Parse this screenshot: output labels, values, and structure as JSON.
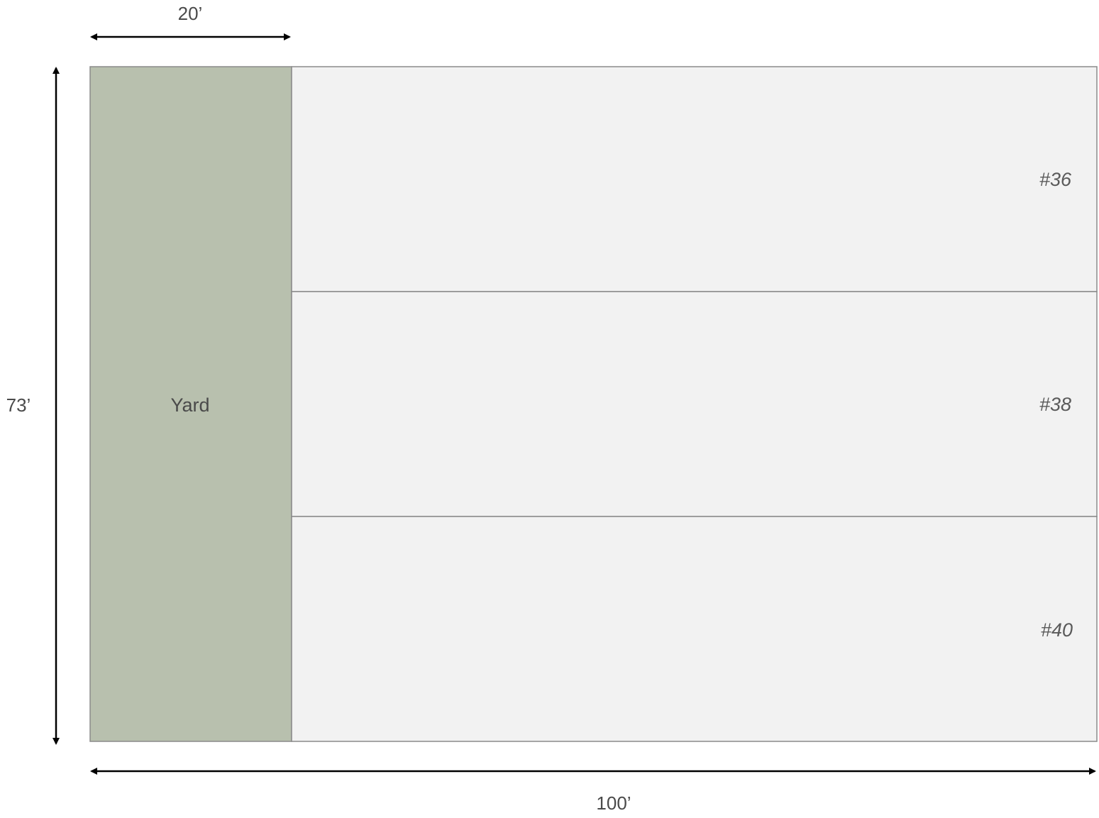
{
  "dimensions": {
    "width_label": "100’",
    "depth_label": "73’",
    "yard_width_label": "20’"
  },
  "yard": {
    "label": "Yard",
    "color": "#b8c0ae"
  },
  "units": [
    {
      "label": "#36"
    },
    {
      "label": "#38"
    },
    {
      "label": "#40"
    }
  ],
  "colors": {
    "unit_fill": "#f2f2f2",
    "outline": "#8a8a8a",
    "arrow": "#000000"
  }
}
